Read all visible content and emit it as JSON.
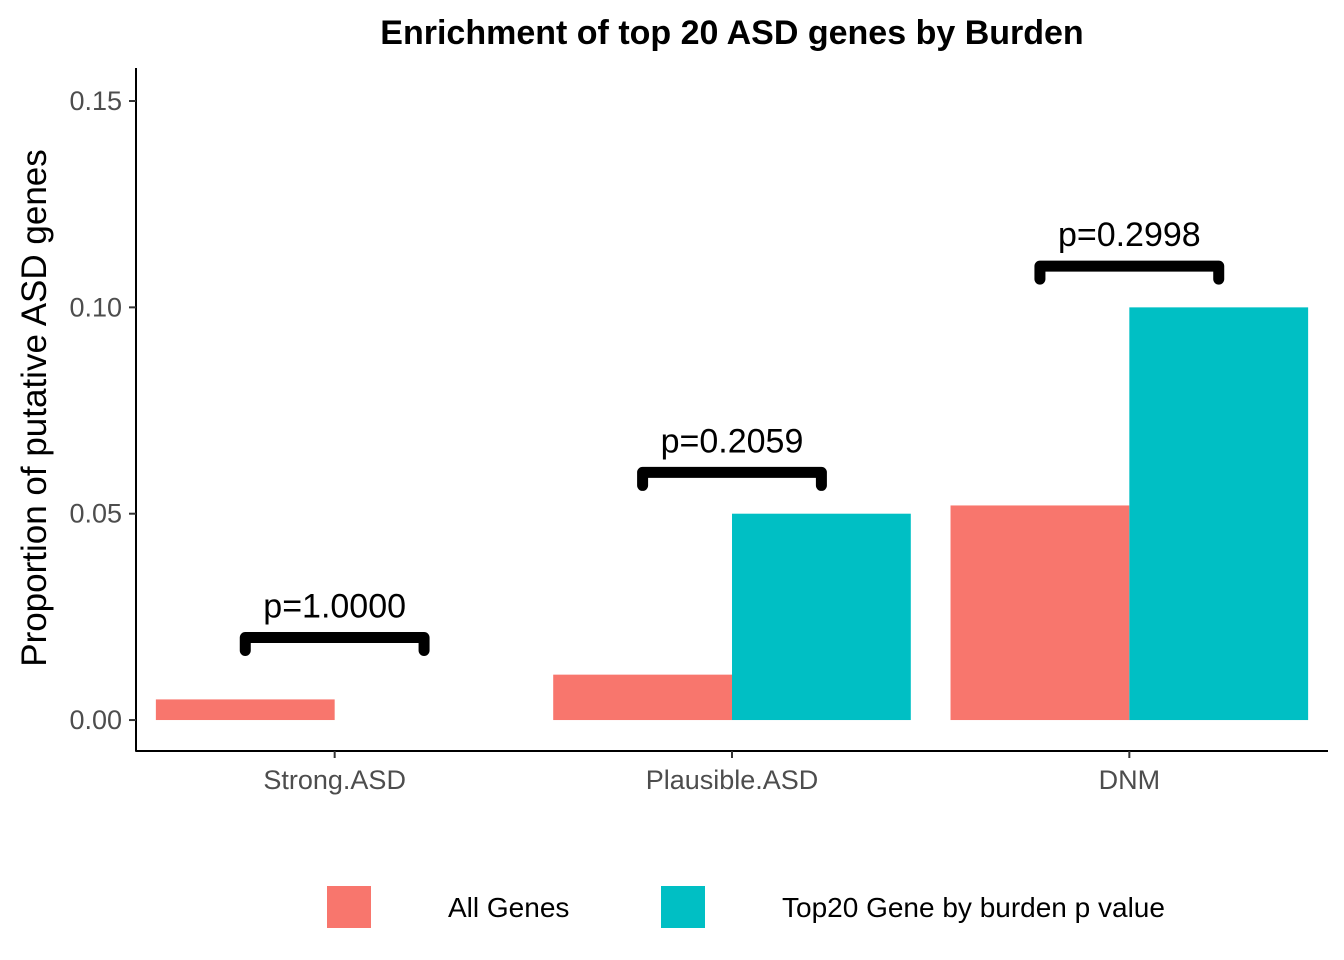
{
  "chart_data": {
    "type": "bar",
    "title": "Enrichment of top 20 ASD genes by Burden",
    "xlabel": "",
    "ylabel": "Proportion of putative ASD genes",
    "categories": [
      "Strong.ASD",
      "Plausible.ASD",
      "DNM"
    ],
    "series": [
      {
        "name": "All Genes",
        "color": "#F8766D",
        "values": [
          0.005,
          0.011,
          0.052
        ]
      },
      {
        "name": "Top20 Gene by burden p value",
        "color": "#00BFC4",
        "values": [
          0.0,
          0.05,
          0.1
        ]
      }
    ],
    "ylim": [
      -0.0075,
      0.158
    ],
    "yticks": [
      0.0,
      0.05,
      0.1,
      0.15
    ],
    "ytick_labels": [
      "0.00",
      "0.05",
      "0.10",
      "0.15"
    ],
    "annotations": [
      {
        "category": "Strong.ASD",
        "label": "p=1.0000",
        "y": 0.02
      },
      {
        "category": "Plausible.ASD",
        "label": "p=0.2059",
        "y": 0.06
      },
      {
        "category": "DNM",
        "label": "p=0.2998",
        "y": 0.11
      }
    ],
    "grid": false,
    "legend_position": "bottom"
  }
}
